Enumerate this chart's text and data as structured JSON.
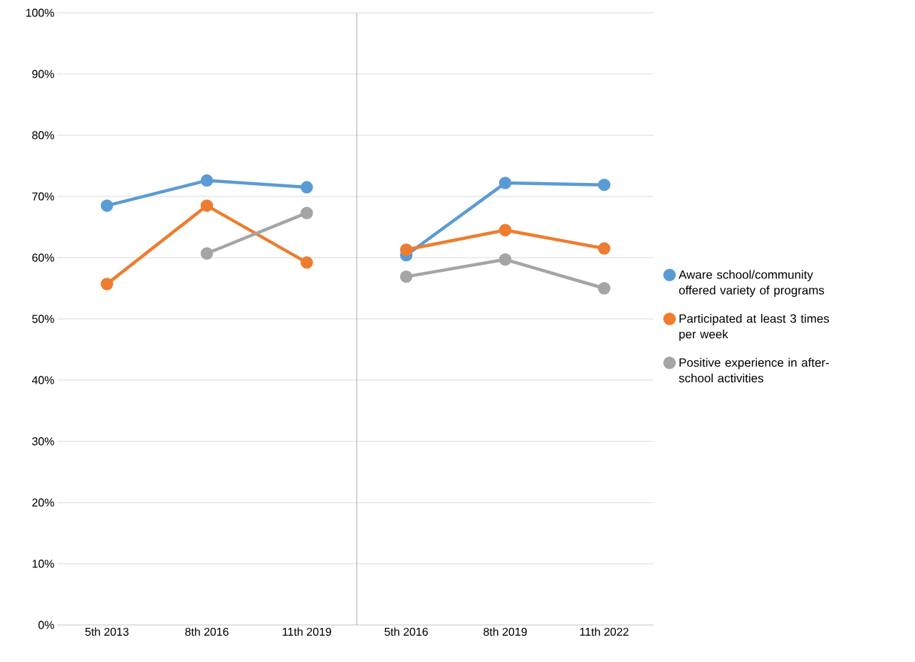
{
  "chart_data": [
    {
      "type": "line",
      "categories": [
        "5th 2013",
        "8th 2016",
        "11th 2019"
      ],
      "series": [
        {
          "color": "#5b9bd5",
          "values": [
            68.5,
            72.6,
            71.5
          ]
        },
        {
          "color": "#ed7d31",
          "values": [
            55.7,
            68.5,
            59.2
          ]
        },
        {
          "color": "#a5a5a5",
          "values": [
            null,
            60.7,
            67.3
          ]
        }
      ],
      "ylim": [
        0,
        100
      ],
      "yticks": [
        {
          "value": 0,
          "label": "0%"
        },
        {
          "value": 10,
          "label": "10%"
        },
        {
          "value": 20,
          "label": "20%"
        },
        {
          "value": 30,
          "label": "30%"
        },
        {
          "value": 40,
          "label": "40%"
        },
        {
          "value": 50,
          "label": "50%"
        },
        {
          "value": 60,
          "label": "60%"
        },
        {
          "value": 70,
          "label": "70%"
        },
        {
          "value": 80,
          "label": "80%"
        },
        {
          "value": 90,
          "label": "90%"
        },
        {
          "value": 100,
          "label": "100%"
        }
      ],
      "grid": "y",
      "marker": "circle",
      "line_style": "solid"
    },
    {
      "type": "line",
      "categories": [
        "5th 2016",
        "8th 2019",
        "11th 2022"
      ],
      "series": [
        {
          "name": "Aware school/community offered variety of programs",
          "color": "#5b9bd5",
          "values": [
            60.4,
            72.2,
            71.9
          ]
        },
        {
          "name": "Participated at least 3 times per week",
          "color": "#ed7d31",
          "values": [
            61.3,
            64.5,
            61.5
          ]
        },
        {
          "name": "Positive experience in after-school activities",
          "color": "#a5a5a5",
          "values": [
            56.9,
            59.7,
            55.0
          ]
        }
      ],
      "ylim": [
        0,
        100
      ],
      "yticks": [
        0,
        10,
        20,
        30,
        40,
        50,
        60,
        70,
        80,
        90,
        100
      ],
      "tick_labels": "x",
      "grid": "y",
      "legend": "right",
      "marker": "circle",
      "line_style": "solid"
    }
  ]
}
